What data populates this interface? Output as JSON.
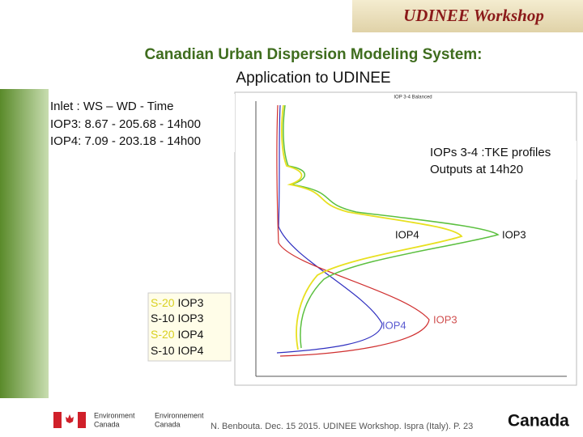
{
  "header": {
    "badge": "UDINEE Workshop",
    "title_line1": "Canadian Urban Dispersion Modeling System:",
    "title_line2": "Application to UDINEE"
  },
  "inlet": {
    "lines": [
      "Inlet : WS – WD - Time",
      "IOP3: 8.67 - 205.68 - 14h00",
      "IOP4: 7.09 - 203.18 - 14h00"
    ]
  },
  "plot": {
    "title": "IOP 3-4 Balanced",
    "annotation": [
      "IOPs 3-4 :TKE profiles",
      "Outputs at 14h20"
    ],
    "labels": {
      "upper_left": "IOP4",
      "upper_right": "IOP3",
      "lower_left": "IOP4",
      "lower_right": "IOP3"
    },
    "legend": [
      {
        "prefix": "S-20",
        "suffix": " IOP3"
      },
      {
        "prefix": "S-10",
        "suffix": " IOP3"
      },
      {
        "prefix": "S-20",
        "suffix": " IOP4"
      },
      {
        "prefix": "S-10",
        "suffix": " IOP4"
      }
    ]
  },
  "footer": {
    "dept_en": [
      "Environment",
      "Canada"
    ],
    "dept_fr": [
      "Environnement",
      "Canada"
    ],
    "citation": "N. Benbouta. Dec. 15 2015. UDINEE Workshop. Ispra (Italy). P. 23",
    "wordmark": "Canada"
  }
}
